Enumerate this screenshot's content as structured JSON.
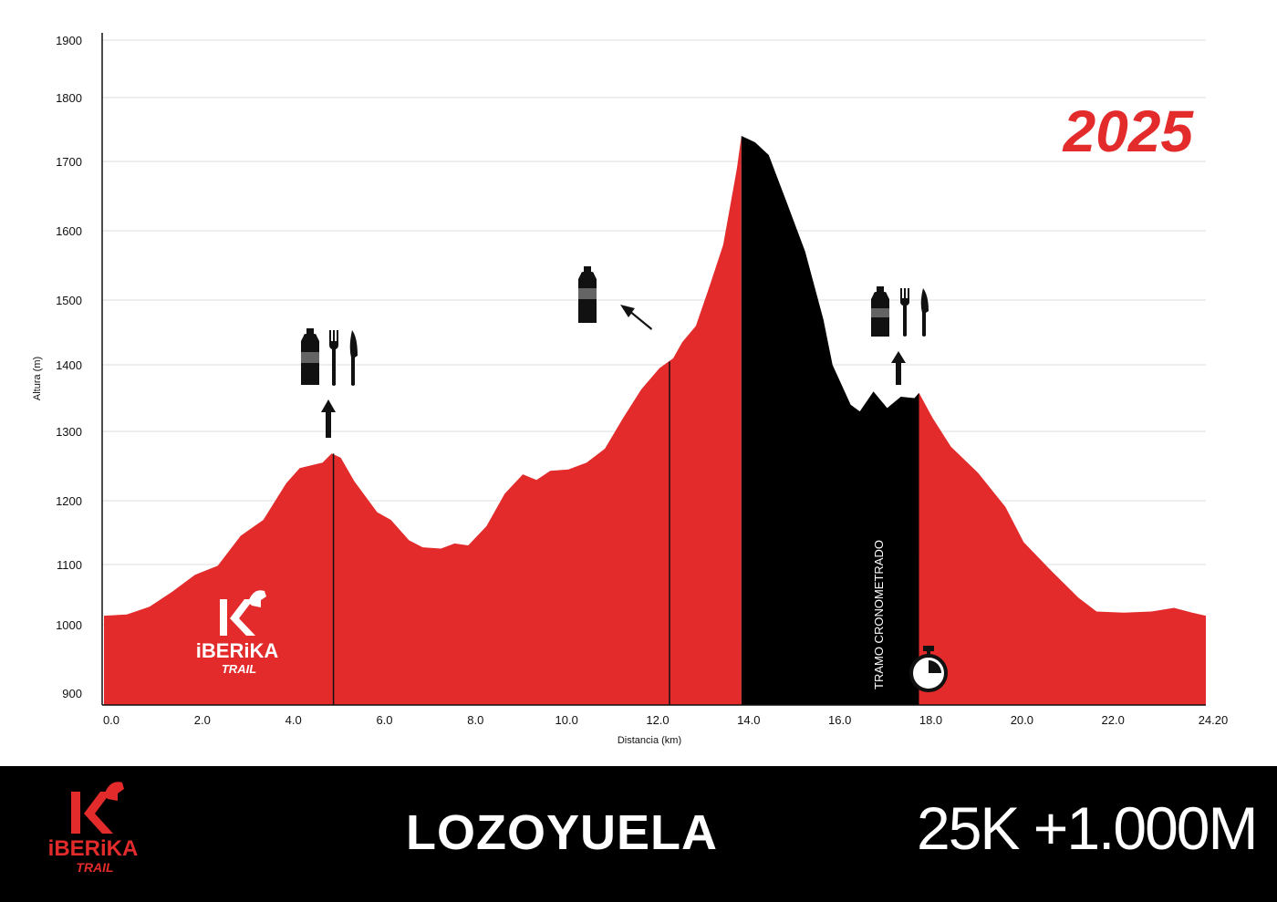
{
  "chart_data": {
    "type": "area",
    "year": "2025",
    "xlabel": "Distancia (km)",
    "ylabel": "Altura (m)",
    "ylim": [
      900,
      1900
    ],
    "xlim": [
      0,
      24.2
    ],
    "y_ticks": [
      "900",
      "1000",
      "1100",
      "1200",
      "1300",
      "1400",
      "1500",
      "1600",
      "1700",
      "1800",
      "1900"
    ],
    "x_ticks": [
      "0.0",
      "2.0",
      "4.0",
      "6.0",
      "8.0",
      "10.0",
      "12.0",
      "14.0",
      "16.0",
      "18.0",
      "20.0",
      "22.0",
      "24.20"
    ],
    "grid": true,
    "profile": [
      [
        0.0,
        1015
      ],
      [
        0.5,
        1017
      ],
      [
        1.0,
        1030
      ],
      [
        1.5,
        1055
      ],
      [
        2.0,
        1083
      ],
      [
        2.5,
        1098
      ],
      [
        3.0,
        1145
      ],
      [
        3.5,
        1170
      ],
      [
        4.0,
        1225
      ],
      [
        4.3,
        1247
      ],
      [
        4.8,
        1255
      ],
      [
        5.0,
        1268
      ],
      [
        5.2,
        1262
      ],
      [
        5.5,
        1228
      ],
      [
        6.0,
        1182
      ],
      [
        6.3,
        1170
      ],
      [
        6.7,
        1138
      ],
      [
        7.0,
        1127
      ],
      [
        7.4,
        1125
      ],
      [
        7.7,
        1133
      ],
      [
        8.0,
        1130
      ],
      [
        8.4,
        1160
      ],
      [
        8.8,
        1210
      ],
      [
        9.2,
        1238
      ],
      [
        9.5,
        1230
      ],
      [
        9.8,
        1243
      ],
      [
        10.2,
        1245
      ],
      [
        10.6,
        1255
      ],
      [
        11.0,
        1275
      ],
      [
        11.4,
        1320
      ],
      [
        11.8,
        1363
      ],
      [
        12.2,
        1395
      ],
      [
        12.5,
        1410
      ],
      [
        12.7,
        1435
      ],
      [
        13.0,
        1460
      ],
      [
        13.3,
        1520
      ],
      [
        13.6,
        1580
      ],
      [
        13.9,
        1690
      ],
      [
        14.0,
        1740
      ],
      [
        14.3,
        1730
      ],
      [
        14.6,
        1710
      ],
      [
        15.0,
        1640
      ],
      [
        15.4,
        1570
      ],
      [
        15.8,
        1470
      ],
      [
        16.0,
        1400
      ],
      [
        16.4,
        1340
      ],
      [
        16.6,
        1330
      ],
      [
        16.9,
        1360
      ],
      [
        17.2,
        1335
      ],
      [
        17.5,
        1352
      ],
      [
        17.8,
        1350
      ],
      [
        17.9,
        1358
      ],
      [
        18.2,
        1320
      ],
      [
        18.6,
        1278
      ],
      [
        19.2,
        1240
      ],
      [
        19.8,
        1190
      ],
      [
        20.2,
        1135
      ],
      [
        20.8,
        1090
      ],
      [
        21.4,
        1045
      ],
      [
        21.8,
        1022
      ],
      [
        22.4,
        1020
      ],
      [
        23.0,
        1022
      ],
      [
        23.5,
        1028
      ],
      [
        23.9,
        1020
      ],
      [
        24.2,
        1015
      ]
    ],
    "segments": [
      {
        "from": 0.0,
        "to": 14.0,
        "color": "#e32b2b"
      },
      {
        "from": 14.0,
        "to": 17.9,
        "color": "#000000",
        "label": "TRAMO CRONOMETRADO"
      },
      {
        "from": 17.9,
        "to": 24.2,
        "color": "#e32b2b"
      }
    ],
    "markers": [
      {
        "km": 5.0,
        "type": "water-food"
      },
      {
        "km": 12.4,
        "type": "water"
      },
      {
        "km": 17.9,
        "type": "water-food"
      }
    ],
    "colors": {
      "profile": "#e32b2b",
      "timed": "#000000",
      "grid": "#dddddd"
    }
  },
  "brand": {
    "name": "iBERiKA",
    "sub": "TRAIL"
  },
  "footer": {
    "race_name": "LOZOYUELA",
    "race_stats": "25K +1.000M"
  }
}
